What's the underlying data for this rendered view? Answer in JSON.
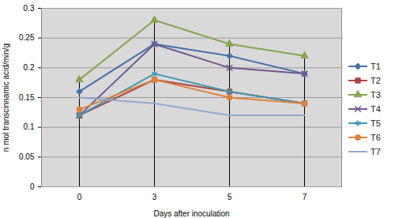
{
  "chart_data": {
    "type": "line",
    "x_label": "Days after inoculation",
    "y_label": "n mol transcinnamic acid/min/g",
    "categories": [
      "0",
      "3",
      "5",
      "7"
    ],
    "ylim": [
      0,
      0.3
    ],
    "yticks": [
      0,
      0.05,
      0.1,
      0.15,
      0.2,
      0.25,
      0.3
    ],
    "grid": true,
    "legend": "right",
    "series": [
      {
        "name": "T1",
        "color": "#4572a7",
        "marker": "diamond",
        "values": [
          0.16,
          0.24,
          0.22,
          0.19
        ]
      },
      {
        "name": "T2",
        "color": "#aa4643",
        "marker": "square",
        "values": [
          0.12,
          0.18,
          0.16,
          0.14
        ]
      },
      {
        "name": "T3",
        "color": "#89a54e",
        "marker": "triangle",
        "values": [
          0.18,
          0.28,
          0.24,
          0.22
        ]
      },
      {
        "name": "T4",
        "color": "#71588f",
        "marker": "times",
        "values": [
          0.12,
          0.24,
          0.2,
          0.19
        ]
      },
      {
        "name": "T5",
        "color": "#4198af",
        "marker": "asterisk",
        "values": [
          0.12,
          0.19,
          0.16,
          0.14
        ]
      },
      {
        "name": "T6",
        "color": "#db843d",
        "marker": "circle",
        "values": [
          0.13,
          0.18,
          0.15,
          0.14
        ]
      },
      {
        "name": "T7",
        "color": "#93a9cf",
        "marker": "none",
        "values": [
          0.15,
          0.14,
          0.12,
          0.12
        ]
      }
    ]
  }
}
